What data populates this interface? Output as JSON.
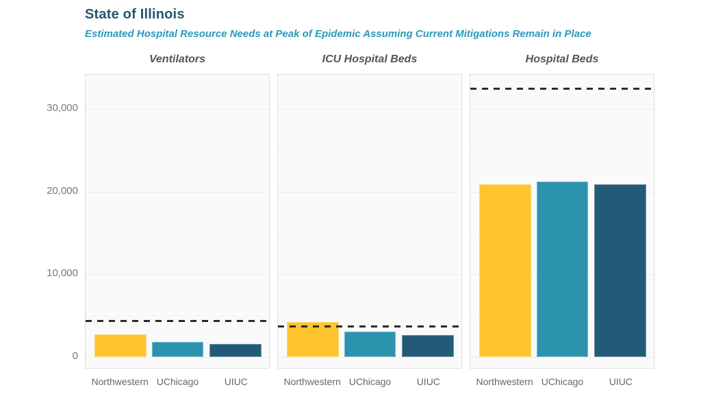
{
  "header": {
    "title": "State of Illinois",
    "subtitle": "Estimated Hospital Resource Needs at Peak of Epidemic Assuming Current Mitigations Remain in Place"
  },
  "colors": {
    "title_text": "#24556F",
    "subtitle_text": "#2B99B9",
    "facet_title_text": "#555555",
    "axis_text": "#777777",
    "panel_background": "#FAFAFA",
    "panel_border": "#DDDDDD",
    "gridline_major": "#ECECEC",
    "gridline_minor": "#F4F4F4",
    "capacity_line": "#2B2B2B",
    "northwestern": "#FFC42E",
    "uchicago": "#2C93AF",
    "uiuc": "#235A77"
  },
  "chart_data": {
    "type": "bar",
    "title": "State of Illinois",
    "subtitle": "Estimated Hospital Resource Needs at Peak of Epidemic Assuming Current Mitigations Remain in Place",
    "categories": [
      "Northwestern",
      "UChicago",
      "UIUC"
    ],
    "series_colors": [
      "#FFC42E",
      "#2C93AF",
      "#235A77"
    ],
    "facets": [
      {
        "label": "Ventilators",
        "values": [
          2750,
          1850,
          1600
        ],
        "capacity_line": 4400
      },
      {
        "label": "ICU Hospital Beds",
        "values": [
          4250,
          3100,
          2650
        ],
        "capacity_line": 3700
      },
      {
        "label": "Hospital Beds",
        "values": [
          20900,
          21250,
          20850
        ],
        "capacity_line": 32500
      }
    ],
    "y_axis": {
      "ticks": [
        0,
        10000,
        20000,
        30000
      ],
      "tick_labels": [
        "0",
        "10,000",
        "20,000",
        "30,000"
      ],
      "minor_ticks": [
        5000,
        15000,
        25000
      ],
      "range": [
        -1500,
        34150
      ]
    },
    "xlabel": "",
    "ylabel": "",
    "legend_position": "none",
    "grid": true,
    "capacity_line_style": "dashed"
  }
}
